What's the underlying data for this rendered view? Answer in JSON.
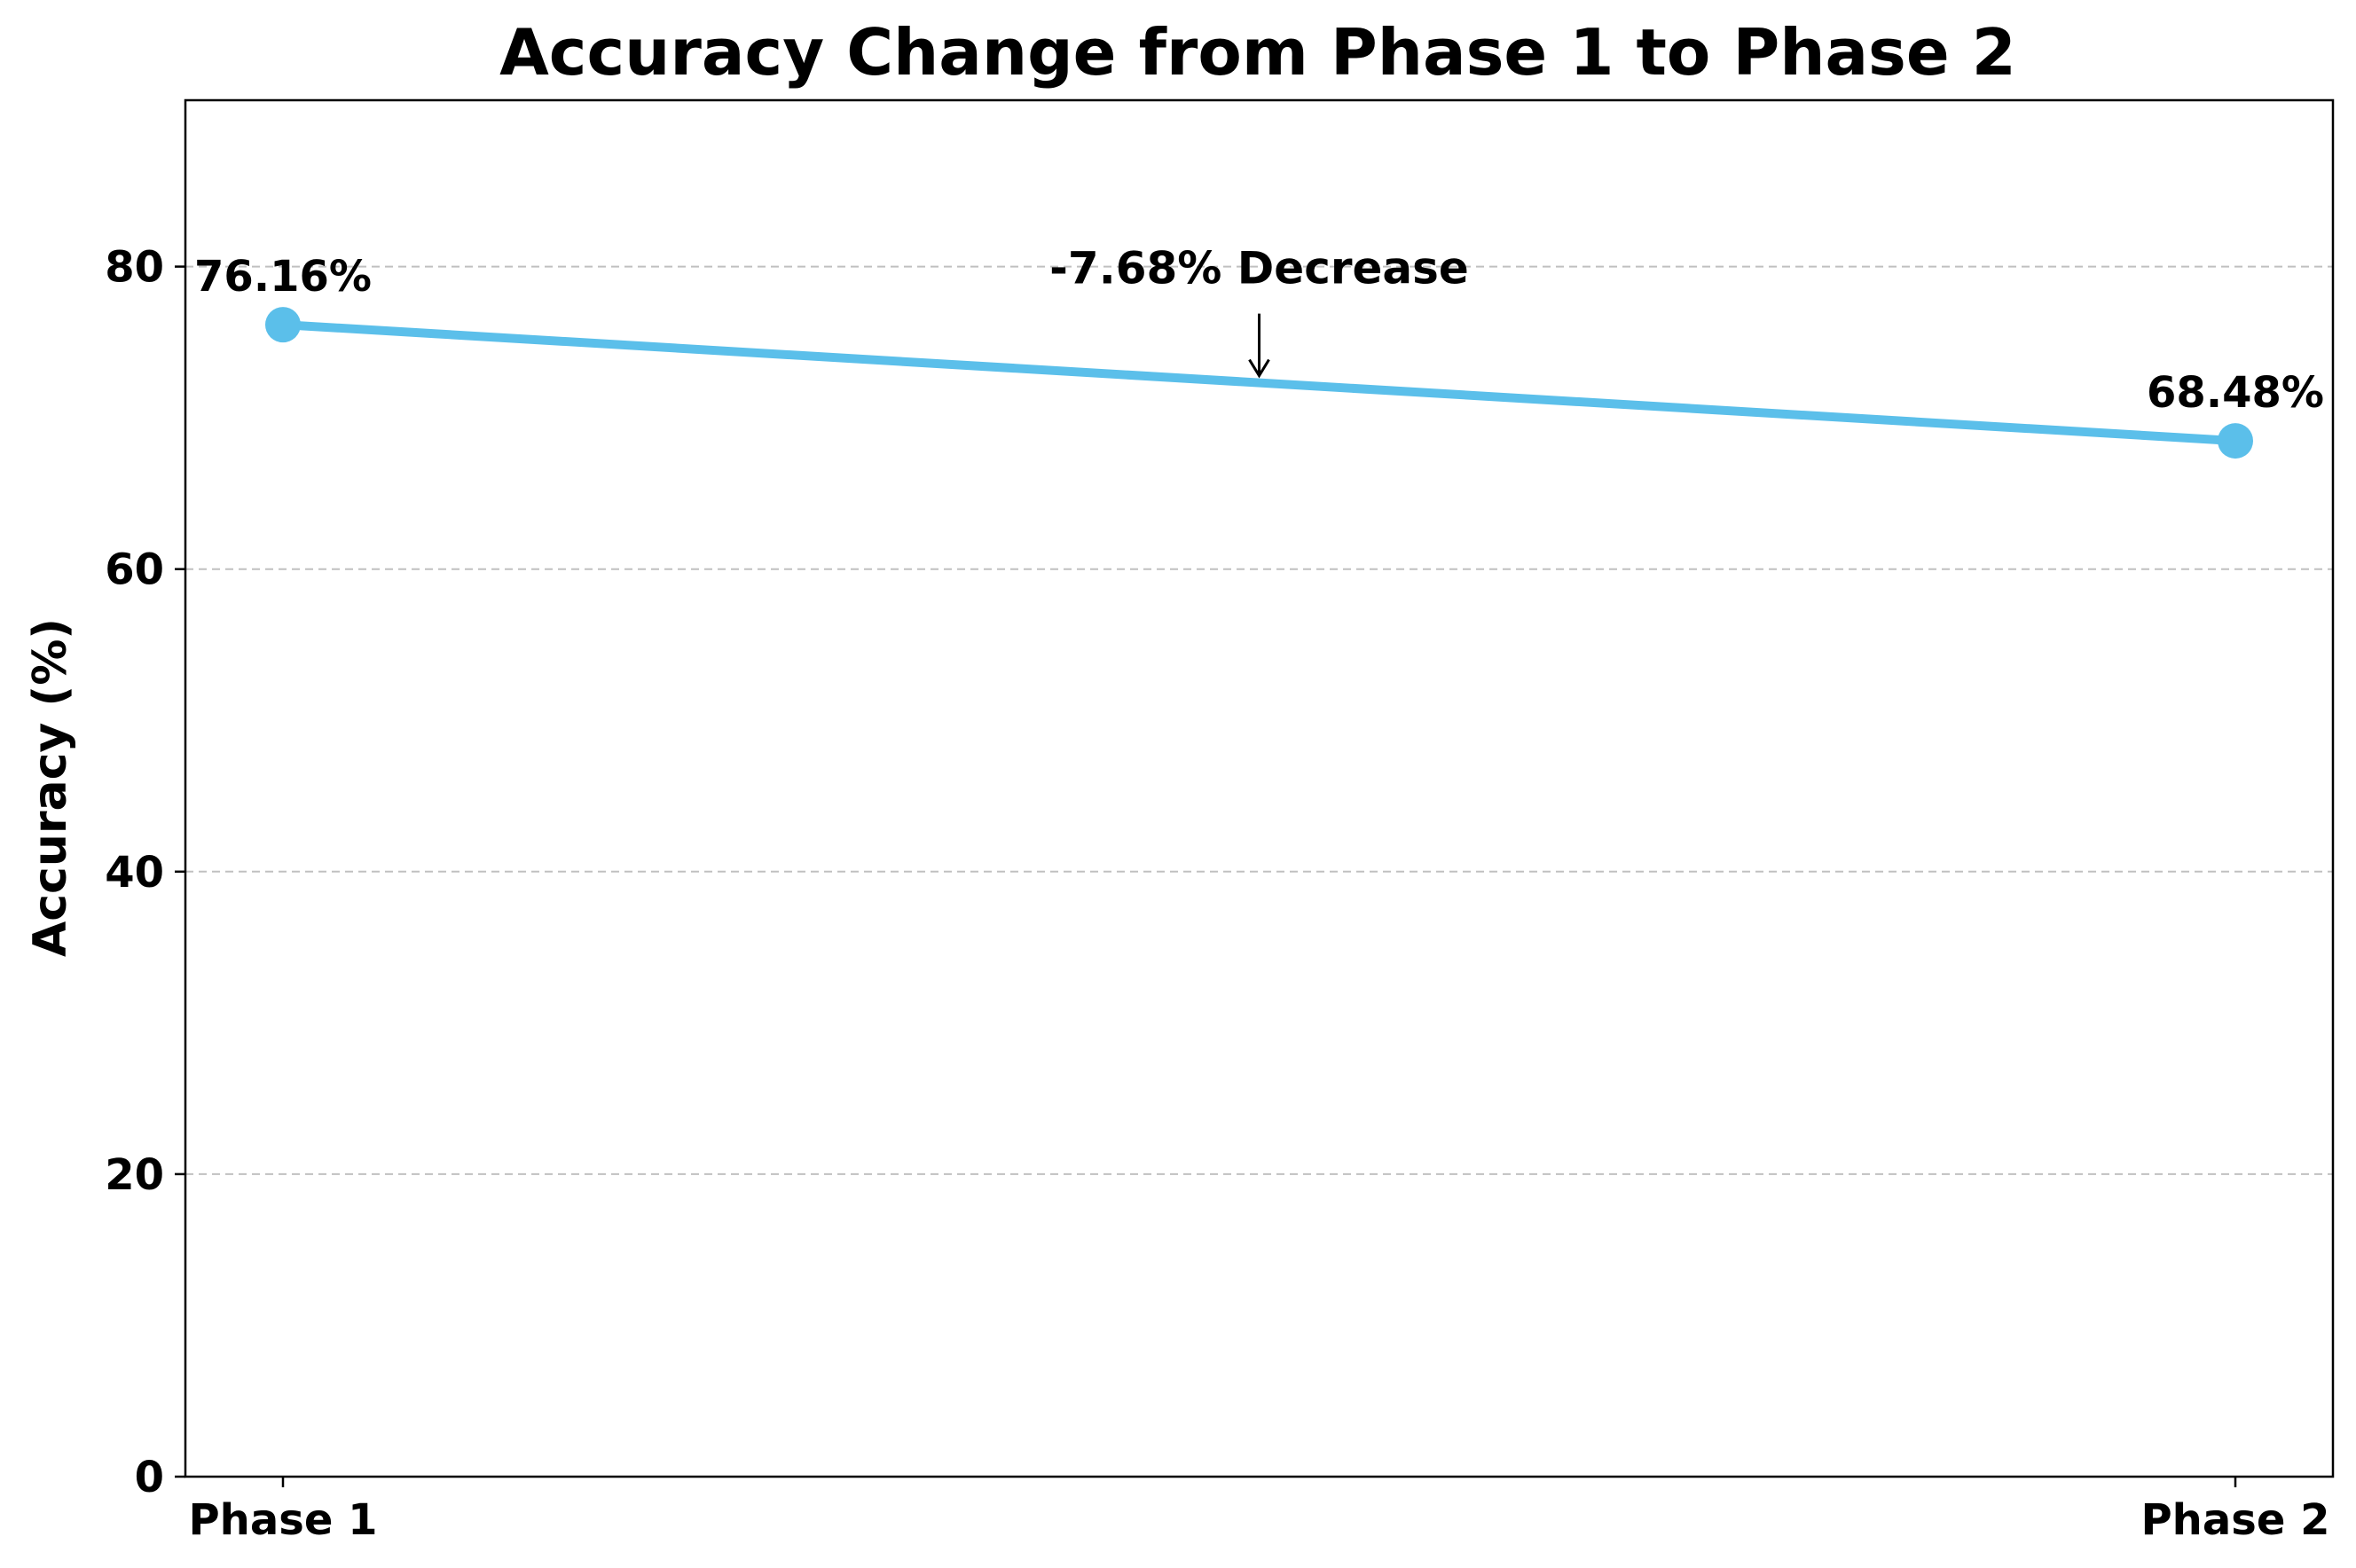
{
  "chart_data": {
    "type": "line",
    "title": "Accuracy Change from Phase 1 to Phase 2",
    "xlabel": "",
    "ylabel": "Accuracy (%)",
    "categories": [
      "Phase 1",
      "Phase 2"
    ],
    "series": [
      {
        "values": [
          76.16,
          68.48
        ],
        "color": "#5bbfea"
      }
    ],
    "data_labels": [
      "76.16%",
      "68.48%"
    ],
    "annotation": {
      "text": "-7.68% Decrease",
      "target_x": 0.5,
      "target_y": 72.32
    },
    "ylim": [
      0,
      91
    ],
    "yticks": [
      0,
      20,
      40,
      60,
      80
    ],
    "grid": "y-dashed",
    "legend": "none"
  }
}
